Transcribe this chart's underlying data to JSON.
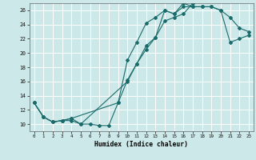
{
  "xlabel": "Humidex (Indice chaleur)",
  "background_color": "#cce8e8",
  "grid_color": "#ffffff",
  "line_color": "#1a6b6b",
  "xlim": [
    -0.5,
    23.5
  ],
  "ylim": [
    9.0,
    27.0
  ],
  "xticks": [
    0,
    1,
    2,
    3,
    4,
    5,
    6,
    7,
    8,
    9,
    10,
    11,
    12,
    13,
    14,
    15,
    16,
    17,
    18,
    19,
    20,
    21,
    22,
    23
  ],
  "yticks": [
    10,
    12,
    14,
    16,
    18,
    20,
    22,
    24,
    26
  ],
  "line1_x": [
    0,
    1,
    2,
    3,
    4,
    5,
    6,
    7,
    8,
    9,
    10,
    11,
    12,
    13,
    14,
    15,
    16,
    17
  ],
  "line1_y": [
    13,
    11,
    10.3,
    10.5,
    10.5,
    10.0,
    10.0,
    9.8,
    9.8,
    13.0,
    16.2,
    18.5,
    21.0,
    22.2,
    24.5,
    25.0,
    25.5,
    27.0
  ],
  "line2_x": [
    0,
    1,
    2,
    3,
    4,
    5,
    10,
    11,
    12,
    13,
    14,
    15,
    16,
    17,
    18,
    19,
    20,
    21,
    22,
    23
  ],
  "line2_y": [
    13,
    11,
    10.3,
    10.5,
    10.8,
    10.0,
    16.0,
    18.5,
    20.5,
    22.2,
    26.0,
    25.5,
    26.5,
    26.5,
    26.5,
    26.5,
    26.0,
    25.0,
    23.5,
    23.0
  ],
  "line3_x": [
    0,
    1,
    2,
    3,
    4,
    9,
    10,
    11,
    12,
    13,
    14,
    15,
    16,
    17,
    18,
    19,
    20,
    21,
    22,
    23
  ],
  "line3_y": [
    13,
    11,
    10.3,
    10.5,
    10.8,
    13.0,
    19.0,
    21.5,
    24.2,
    25.0,
    26.0,
    25.5,
    27.0,
    26.5,
    26.5,
    26.5,
    26.0,
    21.5,
    22.0,
    22.5
  ]
}
